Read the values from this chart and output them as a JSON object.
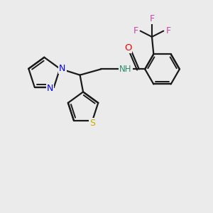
{
  "bg_color": "#ebebeb",
  "bond_color": "#1a1a1a",
  "N_color": "#0000ff",
  "O_color": "#ff0000",
  "S_color": "#ccaa00",
  "F_color": "#cc44aa",
  "NH_color": "#2a8a6a",
  "figsize": [
    3.0,
    3.0
  ],
  "dpi": 100,
  "xlim": [
    0,
    10
  ],
  "ylim": [
    0,
    10
  ]
}
